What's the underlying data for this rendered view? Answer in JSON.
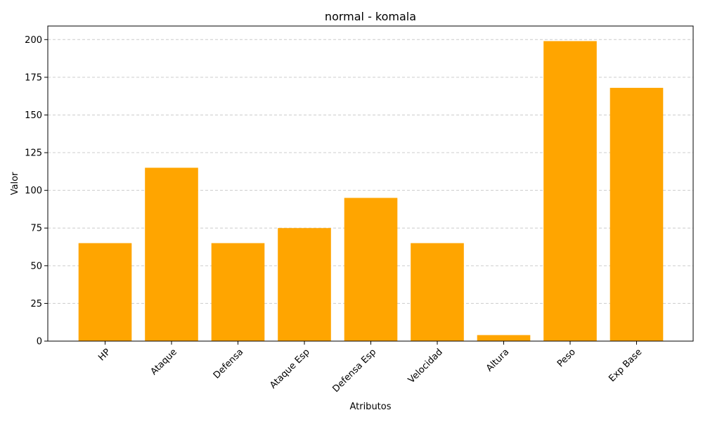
{
  "chart_data": {
    "type": "bar",
    "title": "normal - komala",
    "xlabel": "Atributos",
    "ylabel": "Valor",
    "categories": [
      "HP",
      "Ataque",
      "Defensa",
      "Ataque Esp",
      "Defensa Esp",
      "Velocidad",
      "Altura",
      "Peso",
      "Exp Base"
    ],
    "values": [
      65,
      115,
      65,
      75,
      95,
      65,
      4,
      199,
      168
    ],
    "yticks": [
      0,
      25,
      50,
      75,
      100,
      125,
      150,
      175,
      200
    ],
    "ylim": [
      0,
      209
    ],
    "grid": "y-dashed",
    "bar_color": "#FFA500"
  }
}
